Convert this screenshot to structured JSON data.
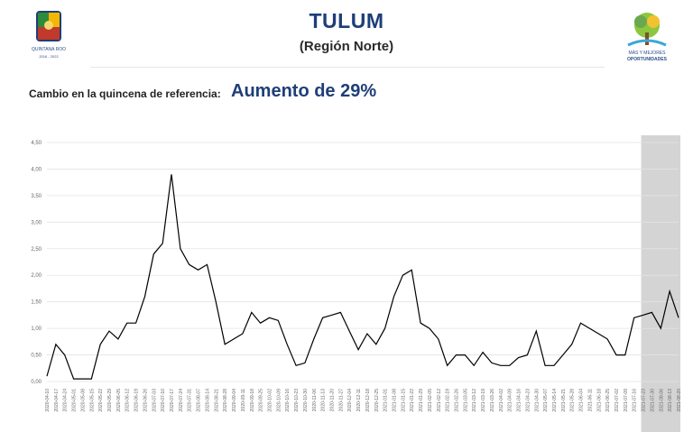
{
  "header": {
    "title": "TULUM",
    "subtitle": "(Región Norte)",
    "change_label": "Cambio en la quincena de referencia:",
    "change_value": "Aumento de 29%"
  },
  "logos": {
    "left_text": "QUINTANA ROO",
    "left_years": "2016 - 2022",
    "right_text_1": "MÁS Y MEJORES",
    "right_text_2": "OPORTUNIDADES"
  },
  "colors": {
    "title": "#1f3e78",
    "line": "#000000",
    "highlight": "#d4d4d4"
  },
  "chart_data": {
    "type": "line",
    "title": "",
    "xlabel": "",
    "ylabel": "",
    "ylim": [
      0,
      4.5
    ],
    "yticks": [
      "0,00",
      "0,50",
      "1,00",
      "1,50",
      "2,00",
      "2,50",
      "3,00",
      "3,50",
      "4,00",
      "4,50"
    ],
    "grid": "horizontal",
    "highlight_last_n": 5,
    "x": [
      "2020-04-10",
      "2020-04-17",
      "2020-04-24",
      "2020-05-01",
      "2020-05-08",
      "2020-05-15",
      "2020-05-22",
      "2020-05-29",
      "2020-06-05",
      "2020-06-12",
      "2020-06-19",
      "2020-06-26",
      "2020-07-03",
      "2020-07-10",
      "2020-07-17",
      "2020-07-24",
      "2020-07-31",
      "2020-08-07",
      "2020-08-14",
      "2020-08-21",
      "2020-08-28",
      "2020-09-04",
      "2020-09-11",
      "2020-09-18",
      "2020-09-25",
      "2020-10-02",
      "2020-10-09",
      "2020-10-16",
      "2020-10-23",
      "2020-10-30",
      "2020-11-06",
      "2020-11-13",
      "2020-11-20",
      "2020-11-27",
      "2020-12-04",
      "2020-12-11",
      "2020-12-18",
      "2020-12-25",
      "2021-01-01",
      "2021-01-08",
      "2021-01-15",
      "2021-01-22",
      "2021-01-29",
      "2021-02-05",
      "2021-02-12",
      "2021-02-19",
      "2021-02-26",
      "2021-03-05",
      "2021-03-12",
      "2021-03-19",
      "2021-03-26",
      "2021-04-02",
      "2021-04-09",
      "2021-04-16",
      "2021-04-23",
      "2021-04-30",
      "2021-05-07",
      "2021-05-14",
      "2021-05-21",
      "2021-05-28",
      "2021-06-04",
      "2021-06-11",
      "2021-06-18",
      "2021-06-25",
      "2021-07-02",
      "2021-07-09",
      "2021-07-16",
      "2021-07-23",
      "2021-07-30",
      "2021-08-06",
      "2021-08-13",
      "2021-08-20"
    ],
    "series": [
      {
        "values": [
          0.1,
          0.7,
          0.5,
          0.05,
          0.05,
          0.05,
          0.7,
          0.95,
          0.8,
          1.1,
          1.1,
          1.6,
          2.4,
          2.6,
          3.9,
          2.5,
          2.2,
          2.1,
          2.2,
          1.5,
          0.7,
          0.8,
          0.9,
          1.3,
          1.1,
          1.2,
          1.15,
          0.7,
          0.3,
          0.35,
          0.8,
          1.2,
          1.25,
          1.3,
          0.95,
          0.6,
          0.9,
          0.7,
          1.0,
          1.6,
          2.0,
          2.1,
          1.1,
          1.0,
          0.8,
          0.3,
          0.5,
          0.5,
          0.3,
          0.55,
          0.35,
          0.3,
          0.3,
          0.45,
          0.5,
          0.95,
          0.3,
          0.3,
          0.5,
          0.7,
          1.1,
          1.0,
          0.9,
          0.8,
          0.5,
          0.5,
          1.2,
          1.25,
          1.3,
          1.0,
          1.7,
          1.2
        ]
      }
    ]
  }
}
